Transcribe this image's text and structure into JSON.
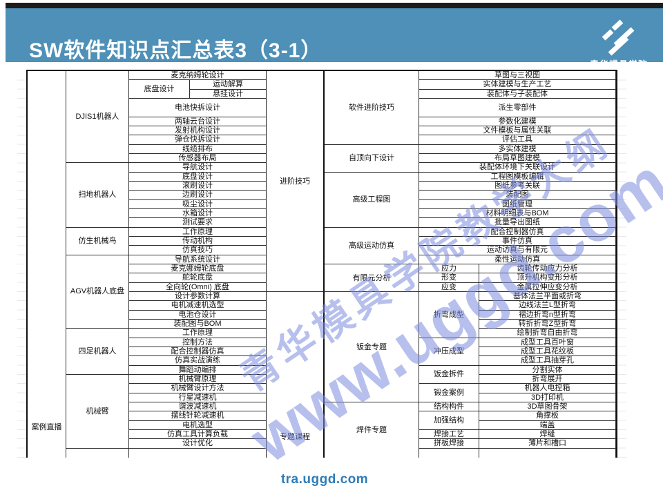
{
  "header": {
    "title": "SW软件知识点汇总表3（3-1）",
    "logo_text": "青华模具学院",
    "bar_color": "#4E90B7",
    "strip_color": "#1C1C1C"
  },
  "watermark": {
    "line1": "青华模具学院教学大纲",
    "line2": "www.uggd.com",
    "color": "#7C8CDE"
  },
  "footer": {
    "url": "tra.uggd.com",
    "color": "#2E7CB8"
  },
  "table": {
    "left": {
      "category": "案例直播",
      "groups": [
        {
          "name": "DJIS1机器人",
          "items": [
            "麦克纳姆轮设计",
            {
              "l": "底盘设计",
              "s": [
                "运动解算",
                "悬挂设计"
              ]
            },
            {
              "t": "电池快拆设计",
              "r": 2
            },
            "两轴云台设计",
            "发射机构设计",
            "弹仓快拆设计",
            "线缆排布",
            "传感器布局"
          ]
        },
        {
          "name": "扫地机器人",
          "items": [
            "导航设计",
            "底盘设计",
            "滚刷设计",
            "边刷设计",
            "吸尘设计",
            "水箱设计",
            "测试要求"
          ]
        },
        {
          "name": "仿生机械鸟",
          "items": [
            "工作原理",
            "传动机构",
            "仿真技巧"
          ]
        },
        {
          "name": "AGV机器人底盘",
          "items": [
            "导航系统设计",
            "麦克娜姆轮底盘",
            "舵轮底盘",
            "全向轮(Omni) 底盘",
            "设计参数计算",
            "电机减速机选型",
            "电池仓设计",
            "装配图与BOM"
          ]
        },
        {
          "name": "四足机器人",
          "items": [
            "工作原理",
            "控制方法",
            "配合控制器仿真",
            "仿真实战演练",
            "舞蹈动编排"
          ]
        },
        {
          "name": "机械臂",
          "items": [
            "机械臂原理",
            "机械臂设计方法",
            "行星减速机",
            "谐波减速机",
            "摆线针轮减速机",
            "电机选型",
            "仿真工具计算负载",
            "设计优化"
          ]
        },
        {
          "name": "",
          "items": [
            ""
          ]
        }
      ]
    },
    "right": {
      "categories": [
        {
          "name": "进阶技巧",
          "rows": 24
        },
        {
          "name": "专题课程",
          "rows": 18
        }
      ],
      "groups": [
        {
          "name": "软件进阶技巧",
          "items": [
            "草图与三视图",
            "实体建模与生产工艺",
            "装配体与子装配体",
            {
              "t": "派生零部件",
              "r": 2
            },
            "参数化建模",
            "文件模板与属性关联",
            "评估工具"
          ]
        },
        {
          "name": "自顶向下设计",
          "items": [
            "多实体建模",
            "布局草图建模",
            "装配体环境下关联设计"
          ]
        },
        {
          "name": "高级工程图",
          "items": [
            "工程图模板编辑",
            "图纸参考关联",
            "装配图",
            "图纸管理",
            "材料明细表与BOM",
            "批量导出图纸"
          ]
        },
        {
          "name": "高级运动仿真",
          "items": [
            "配合控制器仿真",
            "事件仿真",
            "运动访真与有限元",
            "柔性运动仿真"
          ]
        },
        {
          "name": "有限元分析",
          "subs": [
            {
              "l": "应力",
              "s": [
                "齿轮传动应力分析"
              ]
            },
            {
              "l": "形变",
              "s": [
                "顶升机构变形分析"
              ]
            },
            {
              "l": "应变",
              "s": [
                "金属拉伸应变分析"
              ]
            }
          ]
        },
        {
          "name": "钣金专题",
          "subs": [
            {
              "l": "折弯成型",
              "s": [
                "基体法兰平面或折弯",
                "边线法兰L型折弯",
                "褶边折弯n型折弯",
                "转折折弯Z型折弯",
                "绘制折弯自由折弯"
              ]
            },
            {
              "l": "冲压成型",
              "s": [
                "成型工具百叶窗",
                "成型工具花纹板",
                "成型工具抽芽孔"
              ]
            },
            {
              "l": "饭金拆件",
              "s": [
                "分割实体",
                "折弯展开"
              ]
            },
            {
              "l": "锻金案例",
              "s": [
                "机器人电控箱",
                "3D打印机"
              ]
            }
          ]
        },
        {
          "name": "焊件专题",
          "subs": [
            {
              "l": "结构构件",
              "s": [
                "3D草图骨架"
              ]
            },
            {
              "l": "加强结构",
              "s": [
                "角撑板",
                "端盖"
              ]
            },
            {
              "l": "焊接工艺",
              "s": [
                "焊缝"
              ]
            },
            {
              "l": "拼板焊接",
              "s": [
                "薄片和槽口"
              ]
            },
            {
              "l": "",
              "s": [
                ""
              ]
            }
          ]
        }
      ]
    }
  }
}
